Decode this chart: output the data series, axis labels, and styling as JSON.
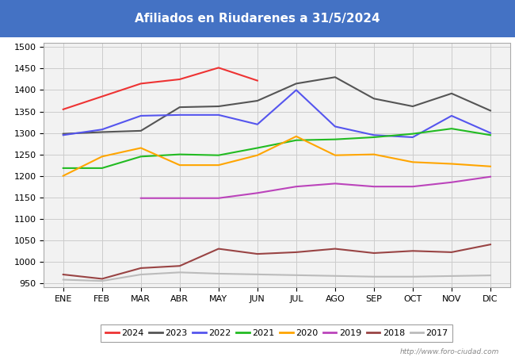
{
  "title": "Afiliados en Riudarenes a 31/5/2024",
  "title_color": "white",
  "title_bg_color": "#4472C4",
  "months": [
    "ENE",
    "FEB",
    "MAR",
    "ABR",
    "MAY",
    "JUN",
    "JUL",
    "AGO",
    "SEP",
    "OCT",
    "NOV",
    "DIC"
  ],
  "ylim": [
    940,
    1510
  ],
  "yticks": [
    950,
    1000,
    1050,
    1100,
    1150,
    1200,
    1250,
    1300,
    1350,
    1400,
    1450,
    1500
  ],
  "series": {
    "2024": {
      "color": "#EE3333",
      "data": [
        1355,
        1385,
        1415,
        1425,
        1452,
        1422,
        null,
        null,
        null,
        null,
        null,
        null
      ]
    },
    "2023": {
      "color": "#555555",
      "data": [
        1298,
        1302,
        1305,
        1360,
        1362,
        1375,
        1415,
        1430,
        1380,
        1362,
        1392,
        1352
      ]
    },
    "2022": {
      "color": "#5555EE",
      "data": [
        1295,
        1308,
        1340,
        1342,
        1342,
        1320,
        1400,
        1315,
        1295,
        1290,
        1340,
        1300
      ]
    },
    "2021": {
      "color": "#22BB22",
      "data": [
        1218,
        1218,
        1245,
        1250,
        1248,
        1265,
        1283,
        1285,
        1290,
        1298,
        1310,
        1295
      ]
    },
    "2020": {
      "color": "#FFA500",
      "data": [
        1200,
        1245,
        1265,
        1225,
        1225,
        1248,
        1292,
        1248,
        1250,
        1232,
        1228,
        1222
      ]
    },
    "2019": {
      "color": "#BB44BB",
      "data": [
        null,
        null,
        1148,
        1148,
        1148,
        1160,
        1175,
        1182,
        1175,
        1175,
        1185,
        1198
      ]
    },
    "2018": {
      "color": "#994444",
      "data": [
        970,
        960,
        985,
        990,
        1030,
        1018,
        1022,
        1030,
        1020,
        1025,
        1022,
        1040
      ]
    },
    "2017": {
      "color": "#BBBBBB",
      "data": [
        958,
        955,
        970,
        975,
        972,
        null,
        null,
        null,
        965,
        965,
        null,
        968
      ]
    }
  },
  "watermark": "http://www.foro-ciudad.com",
  "grid_color": "#CCCCCC",
  "plot_bg_color": "#F2F2F2",
  "outer_bg_color": "#FFFFFF",
  "fig_width": 6.5,
  "fig_height": 4.5,
  "dpi": 100
}
